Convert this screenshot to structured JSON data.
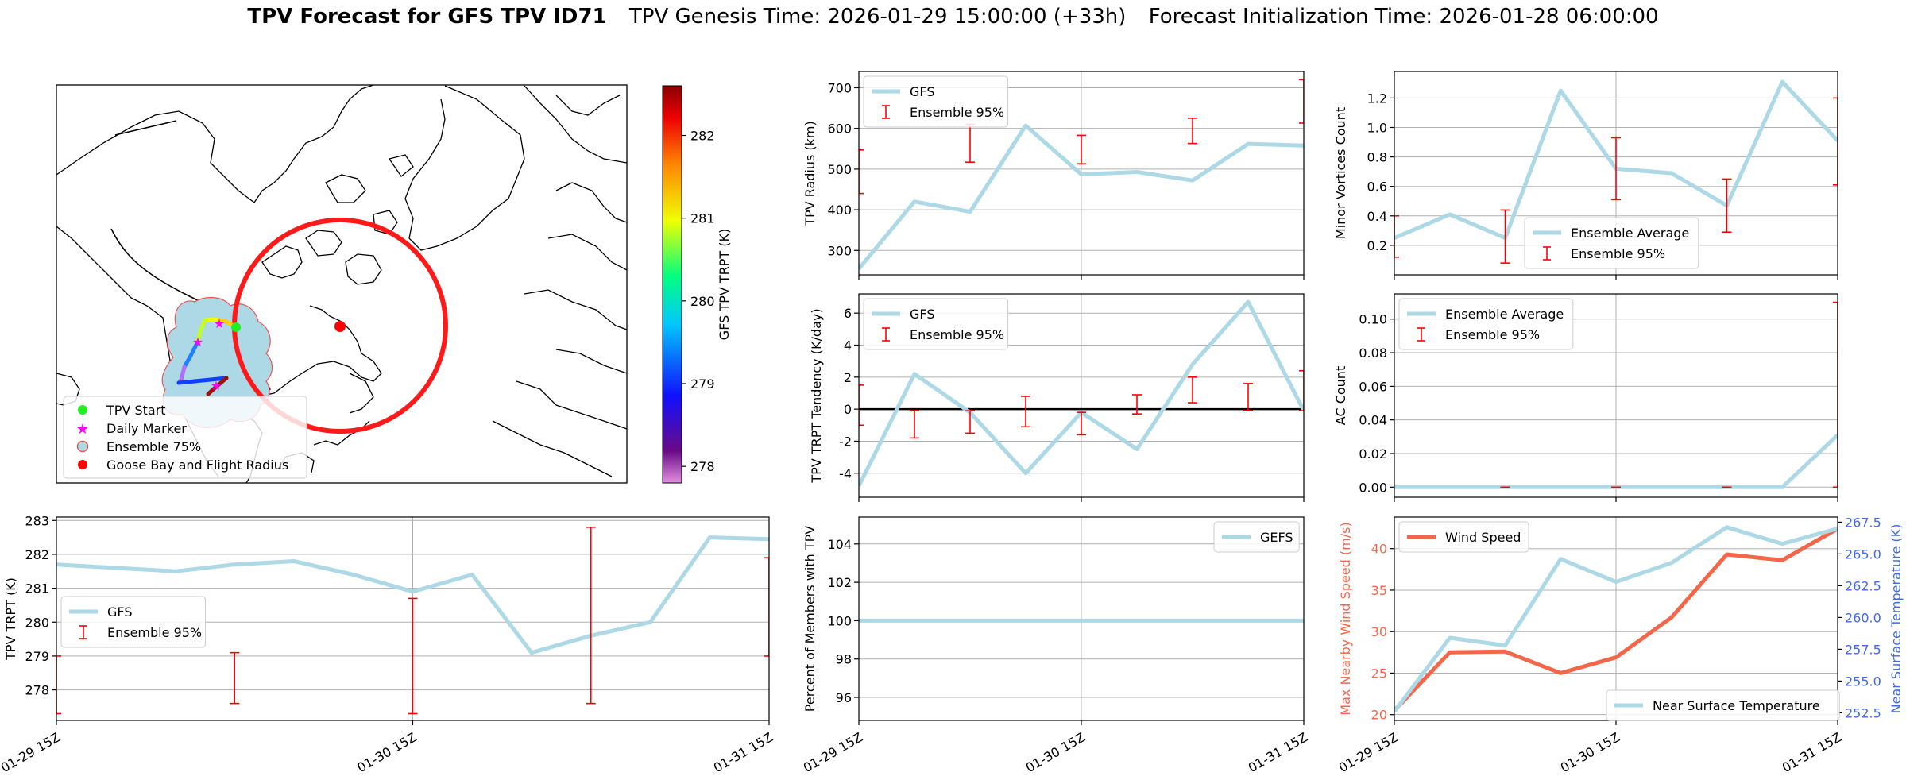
{
  "page": {
    "title_bold": "TPV Forecast for GFS TPV ID71",
    "title_genesis": "TPV Genesis Time: 2026-01-29 15:00:00 (+33h)",
    "title_init": "Forecast Initialization Time: 2026-01-28 06:00:00"
  },
  "colors": {
    "gfs_line": "#add8e6",
    "error_bar": "#ff0000",
    "wind_line": "#f4664a",
    "temp_axis": "#4169e1",
    "black": "#000000",
    "grid": "#b0b0b0"
  },
  "map": {
    "colorbar_label": "GFS TPV TRPT (K)",
    "colorbar_ticks": [
      278,
      279,
      280,
      281,
      282
    ],
    "colorbar_range": [
      277.8,
      282.6
    ],
    "legend": [
      {
        "label": "TPV Start",
        "marker": "green-circle-icon"
      },
      {
        "label": "Daily Marker",
        "marker": "magenta-star-icon"
      },
      {
        "label": "Ensemble 75%",
        "marker": "blue-patch-icon"
      },
      {
        "label": "Goose Bay and Flight Radius",
        "marker": "red-circle-icon"
      }
    ]
  },
  "chart_data": [
    {
      "id": "trpt",
      "type": "line",
      "ylabel": "TPV TRPT (K)",
      "ylim": [
        277.1,
        283.1
      ],
      "yticks": [
        278,
        279,
        280,
        281,
        282,
        283
      ],
      "xlim": [
        0,
        12
      ],
      "xticks": [
        0,
        6,
        12
      ],
      "xticklabels": [
        "01-29 15Z",
        "01-30 15Z",
        "01-31 15Z"
      ],
      "grid": true,
      "legend_pos": "center-left",
      "legend": [
        "GFS",
        "Ensemble 95%"
      ],
      "series": [
        {
          "name": "GFS",
          "x": [
            0,
            1,
            2,
            3,
            4,
            5,
            6,
            7,
            8,
            9,
            10,
            11,
            12
          ],
          "y": [
            281.7,
            281.6,
            281.5,
            281.7,
            281.8,
            281.4,
            280.9,
            281.4,
            279.1,
            279.6,
            280.0,
            282.5,
            282.45
          ]
        }
      ],
      "errorbars": [
        {
          "x": 0,
          "low": 277.3,
          "high": 279.0
        },
        {
          "x": 3,
          "low": 277.6,
          "high": 279.1
        },
        {
          "x": 6,
          "low": 277.3,
          "high": 280.7
        },
        {
          "x": 9,
          "low": 277.6,
          "high": 282.8
        },
        {
          "x": 12,
          "low": 279.0,
          "high": 281.9
        }
      ]
    },
    {
      "id": "radius",
      "type": "line",
      "ylabel": "TPV Radius (km)",
      "ylim": [
        240,
        740
      ],
      "yticks": [
        300,
        400,
        500,
        600,
        700
      ],
      "xlim": [
        0,
        12
      ],
      "xticks": [
        0,
        6,
        12
      ],
      "grid": true,
      "legend_pos": "upper-left",
      "legend": [
        "GFS",
        "Ensemble 95%"
      ],
      "series": [
        {
          "name": "GFS",
          "x": [
            0,
            1.5,
            3,
            4.5,
            6,
            7.5,
            9,
            10.5,
            12
          ],
          "y": [
            255,
            420,
            395,
            607,
            487,
            493,
            472,
            562,
            558
          ]
        }
      ],
      "errorbars": [
        {
          "x": 0,
          "low": 440,
          "high": 547
        },
        {
          "x": 3,
          "low": 517,
          "high": 610
        },
        {
          "x": 6,
          "low": 513,
          "high": 583
        },
        {
          "x": 9,
          "low": 563,
          "high": 625
        },
        {
          "x": 12,
          "low": 613,
          "high": 720
        }
      ]
    },
    {
      "id": "minor",
      "type": "line",
      "ylabel": "Minor Vortices Count",
      "ylim": [
        0.0,
        1.38
      ],
      "yticks": [
        0.2,
        0.4,
        0.6,
        0.8,
        1.0,
        1.2
      ],
      "ytickfmt": 1,
      "xlim": [
        0,
        12
      ],
      "xticks": [
        0,
        6,
        12
      ],
      "grid": true,
      "legend_pos": "lower-center",
      "legend": [
        "Ensemble Average",
        "Ensemble 95%"
      ],
      "series": [
        {
          "name": "Ensemble Average",
          "x": [
            0,
            1.5,
            3,
            4.5,
            6,
            7.5,
            9,
            10.5,
            12
          ],
          "y": [
            0.25,
            0.41,
            0.25,
            1.25,
            0.72,
            0.69,
            0.47,
            1.31,
            0.91
          ]
        }
      ],
      "errorbars": [
        {
          "x": 0,
          "low": 0.12,
          "high": 0.4
        },
        {
          "x": 3,
          "low": 0.08,
          "high": 0.44
        },
        {
          "x": 6,
          "low": 0.51,
          "high": 0.93
        },
        {
          "x": 9,
          "low": 0.29,
          "high": 0.65
        },
        {
          "x": 12,
          "low": 0.61,
          "high": 1.2
        }
      ]
    },
    {
      "id": "tendency",
      "type": "line",
      "ylabel": "TPV TRPT Tendency (K/day)",
      "ylim": [
        -5.5,
        7.2
      ],
      "yticks": [
        -4,
        -2,
        0,
        2,
        4,
        6
      ],
      "xlim": [
        0,
        12
      ],
      "xticks": [
        0,
        6,
        12
      ],
      "grid": true,
      "zero_line": true,
      "legend_pos": "upper-left",
      "legend": [
        "GFS",
        "Ensemble 95%"
      ],
      "series": [
        {
          "name": "GFS",
          "x": [
            0,
            1.5,
            3,
            4.5,
            6,
            7.5,
            9,
            10.5,
            12
          ],
          "y": [
            -4.8,
            2.2,
            -0.2,
            -4.0,
            -0.2,
            -2.5,
            2.8,
            6.7,
            -0.1
          ]
        }
      ],
      "errorbars": [
        {
          "x": 0,
          "low": -1.0,
          "high": 1.5
        },
        {
          "x": 1.5,
          "low": -1.8,
          "high": -0.1
        },
        {
          "x": 3,
          "low": -1.5,
          "high": -0.1
        },
        {
          "x": 4.5,
          "low": -1.1,
          "high": 0.8
        },
        {
          "x": 6,
          "low": -1.6,
          "high": -0.2
        },
        {
          "x": 7.5,
          "low": -0.3,
          "high": 0.9
        },
        {
          "x": 9,
          "low": 0.4,
          "high": 2.0
        },
        {
          "x": 10.5,
          "low": -0.1,
          "high": 1.6
        },
        {
          "x": 12,
          "low": -0.1,
          "high": 2.4
        }
      ]
    },
    {
      "id": "ac",
      "type": "line",
      "ylabel": "AC Count",
      "ylim": [
        -0.006,
        0.115
      ],
      "yticks": [
        0.0,
        0.02,
        0.04,
        0.06,
        0.08,
        0.1
      ],
      "ytickfmt": 2,
      "xlim": [
        0,
        12
      ],
      "xticks": [
        0,
        6,
        12
      ],
      "grid": true,
      "legend_pos": "upper-left",
      "legend": [
        "Ensemble Average",
        "Ensemble 95%"
      ],
      "series": [
        {
          "name": "Ensemble Average",
          "x": [
            0,
            1.5,
            3,
            4.5,
            6,
            7.5,
            9,
            10.5,
            12
          ],
          "y": [
            0,
            0,
            0,
            0,
            0,
            0,
            0,
            0,
            0.031
          ]
        }
      ],
      "errorbars": [
        {
          "x": 3,
          "low": 0,
          "high": 0
        },
        {
          "x": 6,
          "low": 0,
          "high": 0
        },
        {
          "x": 9,
          "low": 0,
          "high": 0
        },
        {
          "x": 12,
          "low": 0,
          "high": 0.11
        }
      ]
    },
    {
      "id": "members",
      "type": "line",
      "ylabel": "Percent of Members with TPV",
      "ylim": [
        94.8,
        105.4
      ],
      "yticks": [
        96,
        98,
        100,
        102,
        104
      ],
      "xlim": [
        0,
        12
      ],
      "xticks": [
        0,
        6,
        12
      ],
      "xticklabels": [
        "01-29 15Z",
        "01-30 15Z",
        "01-31 15Z"
      ],
      "grid": true,
      "legend_pos": "upper-right",
      "legend": [
        "GEFS"
      ],
      "series": [
        {
          "name": "GEFS",
          "x": [
            0,
            12
          ],
          "y": [
            100,
            100
          ]
        }
      ]
    },
    {
      "id": "wind",
      "type": "line",
      "ylabel": "Max Nearby Wind Speed (m/s)",
      "ylabel_right": "Near Surface Temperature (K)",
      "ylim": [
        19.3,
        43.8
      ],
      "yticks": [
        20,
        25,
        30,
        35,
        40
      ],
      "ylim_right": [
        251.9,
        267.9
      ],
      "yticks_right": [
        252.5,
        255.0,
        257.5,
        260.0,
        262.5,
        265.0,
        267.5
      ],
      "xlim": [
        0,
        12
      ],
      "xticks": [
        0,
        6,
        12
      ],
      "xticklabels": [
        "01-29 15Z",
        "01-30 15Z",
        "01-31 15Z"
      ],
      "grid": true,
      "legend": [
        "Wind Speed",
        "Near Surface Temperature"
      ],
      "series": [
        {
          "name": "Wind Speed",
          "axis": "left",
          "x": [
            0,
            1.5,
            3,
            4.5,
            6,
            7.5,
            9,
            10.5,
            12
          ],
          "y": [
            20.5,
            27.5,
            27.6,
            25.0,
            26.9,
            31.7,
            39.3,
            38.6,
            42.4
          ]
        },
        {
          "name": "Near Surface Temperature",
          "axis": "right",
          "x": [
            0,
            1.5,
            3,
            4.5,
            6,
            7.5,
            9,
            10.5,
            12
          ],
          "y": [
            252.6,
            258.4,
            257.8,
            264.6,
            262.8,
            264.3,
            267.1,
            265.8,
            267.0
          ]
        }
      ]
    }
  ]
}
